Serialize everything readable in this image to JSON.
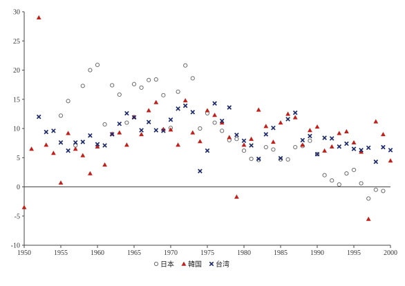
{
  "chart_data": {
    "type": "scatter",
    "xlim": [
      1950,
      2000
    ],
    "ylim": [
      -10,
      30
    ],
    "x_ticks": [
      1950,
      1955,
      1960,
      1965,
      1970,
      1975,
      1980,
      1985,
      1990,
      1995,
      2000
    ],
    "y_ticks": [
      -10,
      -5,
      0,
      5,
      10,
      15,
      20,
      25,
      30
    ],
    "grid": false,
    "legend_position": "bottom-center",
    "series": [
      {
        "name": "日本",
        "marker": "circle-open",
        "color": "#6b6b6b",
        "x": [
          1955,
          1956,
          1957,
          1958,
          1959,
          1960,
          1961,
          1962,
          1963,
          1964,
          1965,
          1966,
          1967,
          1968,
          1969,
          1970,
          1971,
          1972,
          1973,
          1974,
          1975,
          1976,
          1977,
          1978,
          1979,
          1980,
          1981,
          1982,
          1983,
          1984,
          1985,
          1986,
          1987,
          1988,
          1989,
          1990,
          1991,
          1992,
          1993,
          1994,
          1995,
          1996,
          1997,
          1998,
          1999
        ],
        "y": [
          12.2,
          14.7,
          7.1,
          17.3,
          20.0,
          20.9,
          10.7,
          17.4,
          15.8,
          11.0,
          17.6,
          17.0,
          18.3,
          18.4,
          15.7,
          10.1,
          16.3,
          20.8,
          18.6,
          10.0,
          12.6,
          11.0,
          9.6,
          8.0,
          8.2,
          6.2,
          4.8,
          4.6,
          6.8,
          6.4,
          4.7,
          4.7,
          6.8,
          7.0,
          7.9,
          5.6,
          2.0,
          1.1,
          0.4,
          2.3,
          2.9,
          0.6,
          -2.0,
          -0.5,
          -0.7
        ]
      },
      {
        "name": "韓国",
        "marker": "triangle",
        "color": "#c0201b",
        "x": [
          1950,
          1951,
          1952,
          1953,
          1954,
          1955,
          1956,
          1957,
          1958,
          1959,
          1960,
          1961,
          1962,
          1963,
          1964,
          1965,
          1966,
          1967,
          1968,
          1969,
          1970,
          1971,
          1972,
          1973,
          1974,
          1975,
          1976,
          1977,
          1978,
          1979,
          1980,
          1981,
          1982,
          1983,
          1984,
          1985,
          1986,
          1987,
          1988,
          1989,
          1990,
          1991,
          1992,
          1993,
          1994,
          1995,
          1996,
          1997,
          1998,
          1999,
          2000
        ],
        "y": [
          -3.5,
          6.5,
          29.0,
          7.2,
          5.8,
          0.7,
          9.2,
          6.5,
          5.4,
          2.3,
          6.9,
          3.8,
          9.1,
          9.3,
          7.2,
          12.0,
          9.0,
          13.1,
          14.5,
          9.9,
          9.8,
          7.2,
          14.8,
          9.3,
          7.8,
          13.1,
          12.3,
          11.0,
          8.5,
          -1.7,
          7.2,
          8.2,
          13.2,
          10.4,
          7.7,
          11.0,
          12.5,
          11.9,
          7.2,
          9.7,
          10.3,
          6.2,
          6.9,
          9.2,
          9.5,
          7.6,
          6.0,
          -5.5,
          11.2,
          9.0,
          4.5
        ]
      },
      {
        "name": "台湾",
        "marker": "x",
        "color": "#1c2a6b",
        "x": [
          1952,
          1953,
          1954,
          1955,
          1956,
          1957,
          1958,
          1959,
          1960,
          1961,
          1962,
          1963,
          1964,
          1965,
          1966,
          1967,
          1968,
          1969,
          1970,
          1971,
          1972,
          1973,
          1974,
          1975,
          1976,
          1977,
          1978,
          1979,
          1980,
          1981,
          1982,
          1983,
          1984,
          1985,
          1986,
          1987,
          1988,
          1989,
          1990,
          1991,
          1992,
          1993,
          1994,
          1995,
          1996,
          1997,
          1998,
          1999,
          2000
        ],
        "y": [
          12.0,
          9.4,
          9.6,
          7.6,
          6.2,
          7.6,
          7.7,
          8.8,
          7.3,
          7.1,
          9.0,
          10.8,
          12.6,
          11.9,
          9.7,
          11.1,
          9.7,
          9.6,
          11.5,
          13.4,
          13.9,
          12.8,
          2.7,
          6.2,
          14.3,
          11.3,
          13.6,
          8.9,
          7.9,
          7.1,
          4.8,
          9.0,
          10.1,
          4.9,
          11.6,
          12.7,
          8.0,
          8.7,
          5.6,
          8.4,
          8.3,
          6.9,
          7.4,
          6.5,
          6.3,
          6.7,
          4.3,
          6.8,
          6.3
        ]
      }
    ]
  }
}
